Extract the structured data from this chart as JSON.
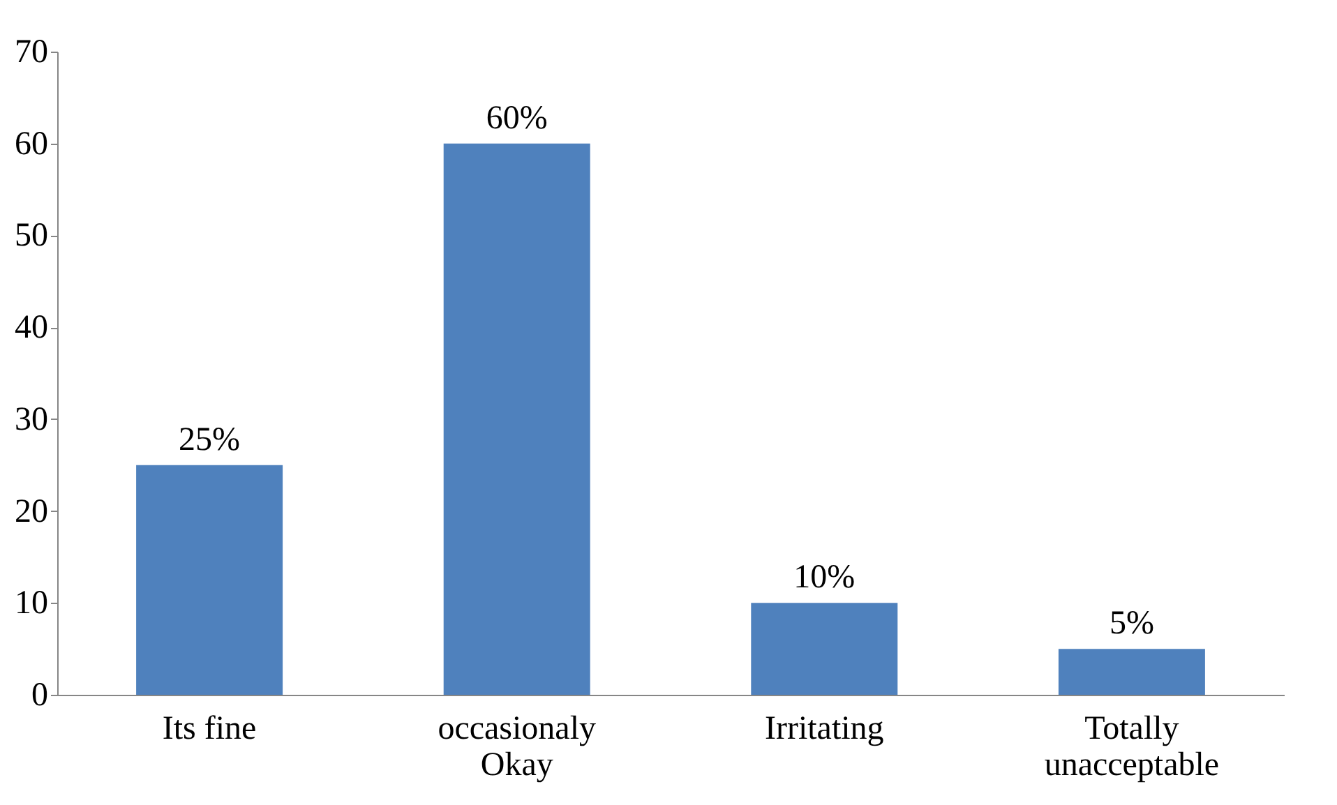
{
  "chart_data": {
    "type": "bar",
    "categories": [
      "Its fine",
      "occasionaly Okay",
      "Irritating",
      "Totally unacceptable"
    ],
    "values": [
      25,
      60,
      10,
      5
    ],
    "value_labels": [
      "25%",
      "60%",
      "10%",
      "5%"
    ],
    "color": "#4f81bd",
    "ylim": [
      0,
      70
    ],
    "yticks": [
      0,
      10,
      20,
      30,
      40,
      50,
      60,
      70
    ],
    "grid": false
  }
}
